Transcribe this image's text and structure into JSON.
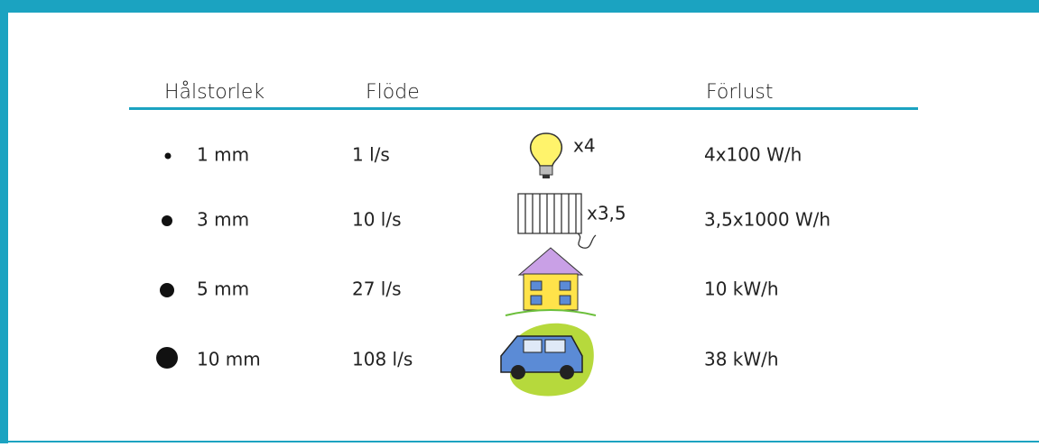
{
  "table": {
    "header": [
      "Hålstorlek",
      "Flöde",
      "Förlust"
    ],
    "rows": [
      {
        "size": "1 mm",
        "flow": "1 l/s",
        "multiplier": "x4",
        "loss": "4x100 W/h"
      },
      {
        "size": "3 mm",
        "flow": "10 l/s",
        "multiplier": "x3,5",
        "loss": "3,5x1000 W/h"
      },
      {
        "size": "5 mm",
        "flow": "27 l/s",
        "loss": "10 kW/h"
      },
      {
        "size": "10 mm",
        "flow": "108 l/s",
        "loss": "38 kW/h"
      }
    ]
  }
}
